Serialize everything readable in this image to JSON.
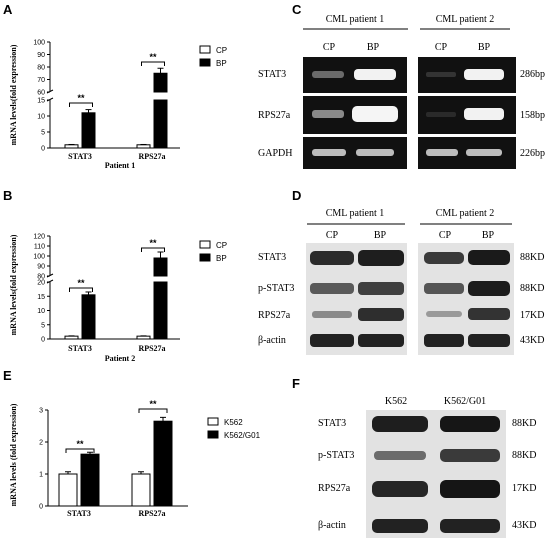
{
  "figure": {
    "panels": {
      "A": "A",
      "B": "B",
      "C": "C",
      "D": "D",
      "E": "E",
      "F": "F"
    },
    "significance": "**",
    "colors": {
      "bar_light": "#ffffff",
      "bar_dark": "#000000",
      "gel_bg": "#111111",
      "band": "#e8e8e8",
      "wb_bg": "#e6e6e6",
      "wb_band": "#2a2a2a"
    }
  },
  "chart_data": [
    {
      "panel": "A",
      "type": "bar",
      "categories": [
        "STAT3",
        "RPS27a"
      ],
      "series": [
        {
          "name": "CP",
          "values": [
            1,
            1
          ],
          "errors": [
            0.1,
            0.1
          ]
        },
        {
          "name": "BP",
          "values": [
            11,
            75
          ],
          "errors": [
            1,
            4
          ]
        }
      ],
      "ylabel": "mRNA levels(fold expression)",
      "xlabel": "Patient 1",
      "broken_axis": {
        "lower": [
          0,
          15
        ],
        "upper": [
          60,
          100
        ]
      },
      "yticks": [
        0,
        5,
        10,
        15,
        60,
        70,
        80,
        90,
        100
      ],
      "legend": "top-right"
    },
    {
      "panel": "B",
      "type": "bar",
      "categories": [
        "STAT3",
        "RPS27a"
      ],
      "series": [
        {
          "name": "CP",
          "values": [
            1,
            1
          ],
          "errors": [
            0.1,
            0.1
          ]
        },
        {
          "name": "BP",
          "values": [
            15.5,
            98
          ],
          "errors": [
            1,
            6
          ]
        }
      ],
      "ylabel": "mRNA levels(fold expression)",
      "xlabel": "Patient 2",
      "broken_axis": {
        "lower": [
          0,
          20
        ],
        "upper": [
          80,
          120
        ]
      },
      "yticks": [
        0,
        5,
        10,
        15,
        20,
        80,
        90,
        100,
        110,
        120
      ],
      "legend": "top-right"
    },
    {
      "panel": "E",
      "type": "bar",
      "categories": [
        "STAT3",
        "RPS27a"
      ],
      "series": [
        {
          "name": "K562",
          "values": [
            1.0,
            1.0
          ],
          "errors": [
            0.07,
            0.07
          ]
        },
        {
          "name": "K562/G01",
          "values": [
            1.62,
            2.65
          ],
          "errors": [
            0.06,
            0.12
          ]
        }
      ],
      "ylabel": "mRNA levels (fold expression)",
      "xlabel": "",
      "ylim": [
        0,
        3
      ],
      "yticks": [
        0,
        1,
        2,
        3
      ],
      "legend": "top-right"
    }
  ],
  "gel_C": {
    "patient1": "CML patient 1",
    "patient2": "CML patient 2",
    "lanes": [
      "CP",
      "BP",
      "CP",
      "BP"
    ],
    "rows": [
      {
        "label": "STAT3",
        "size": "286bp"
      },
      {
        "label": "RPS27a",
        "size": "158bp"
      },
      {
        "label": "GAPDH",
        "size": "226bp"
      }
    ]
  },
  "blot_D": {
    "patient1": "CML patient 1",
    "patient2": "CML patient 2",
    "lanes": [
      "CP",
      "BP",
      "CP",
      "BP"
    ],
    "rows": [
      {
        "label": "STAT3",
        "size": "88KD"
      },
      {
        "label": "p-STAT3",
        "size": "88KD"
      },
      {
        "label": "RPS27a",
        "size": "17KD"
      },
      {
        "label": "β-actin",
        "size": "43KD"
      }
    ]
  },
  "blot_F": {
    "lanes": [
      "K562",
      "K562/G01"
    ],
    "rows": [
      {
        "label": "STAT3",
        "size": "88KD"
      },
      {
        "label": "p-STAT3",
        "size": "88KD"
      },
      {
        "label": "RPS27a",
        "size": "17KD"
      },
      {
        "label": "β-actin",
        "size": "43KD"
      }
    ]
  }
}
